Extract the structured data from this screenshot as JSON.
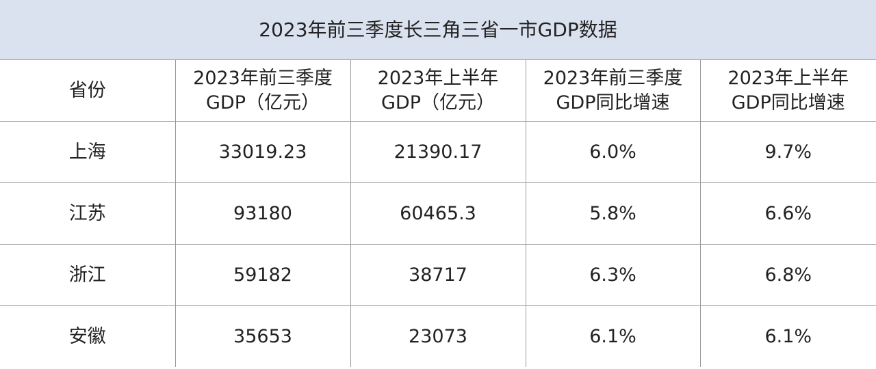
{
  "title": "2023年前三季度长三角三省一市GDP数据",
  "table": {
    "header": [
      [
        "省份"
      ],
      [
        "2023年前三季度",
        "GDP（亿元）"
      ],
      [
        "2023年上半年",
        "GDP（亿元）"
      ],
      [
        "2023年前三季度",
        "GDP同比增速"
      ],
      [
        "2023年上半年",
        "GDP同比增速"
      ]
    ],
    "rows": [
      [
        "上海",
        "33019.23",
        "21390.17",
        "6.0%",
        "9.7%"
      ],
      [
        "江苏",
        "93180",
        "60465.3",
        "5.8%",
        "6.6%"
      ],
      [
        "浙江",
        "59182",
        "38717",
        "6.3%",
        "6.8%"
      ],
      [
        "安徽",
        "35653",
        "23073",
        "6.1%",
        "6.1%"
      ]
    ]
  }
}
